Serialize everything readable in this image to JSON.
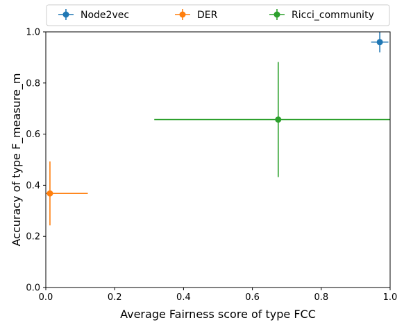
{
  "chart_data": {
    "type": "scatter",
    "xlabel": "Average Fairness score of type FCC",
    "ylabel": "Accuracy of type F_measure_m",
    "xlim": [
      0.0,
      1.0
    ],
    "ylim": [
      0.0,
      1.0
    ],
    "xticks": [
      "0.0",
      "0.2",
      "0.4",
      "0.6",
      "0.8",
      "1.0"
    ],
    "yticks": [
      "0.0",
      "0.2",
      "0.4",
      "0.6",
      "0.8",
      "1.0"
    ],
    "legend_position": "top, above plot, horizontal",
    "grid": false,
    "series": [
      {
        "name": "Node2vec",
        "color": "#1f77b4",
        "x": 0.97,
        "y": 0.96,
        "xerr": 0.025,
        "yerr": 0.04
      },
      {
        "name": "DER",
        "color": "#ff7f0e",
        "x": 0.012,
        "y": 0.368,
        "xerr": 0.11,
        "yerr": 0.125
      },
      {
        "name": "Ricci_community",
        "color": "#2ca02c",
        "x": 0.675,
        "y": 0.657,
        "xerr": 0.36,
        "yerr": 0.225
      }
    ]
  }
}
